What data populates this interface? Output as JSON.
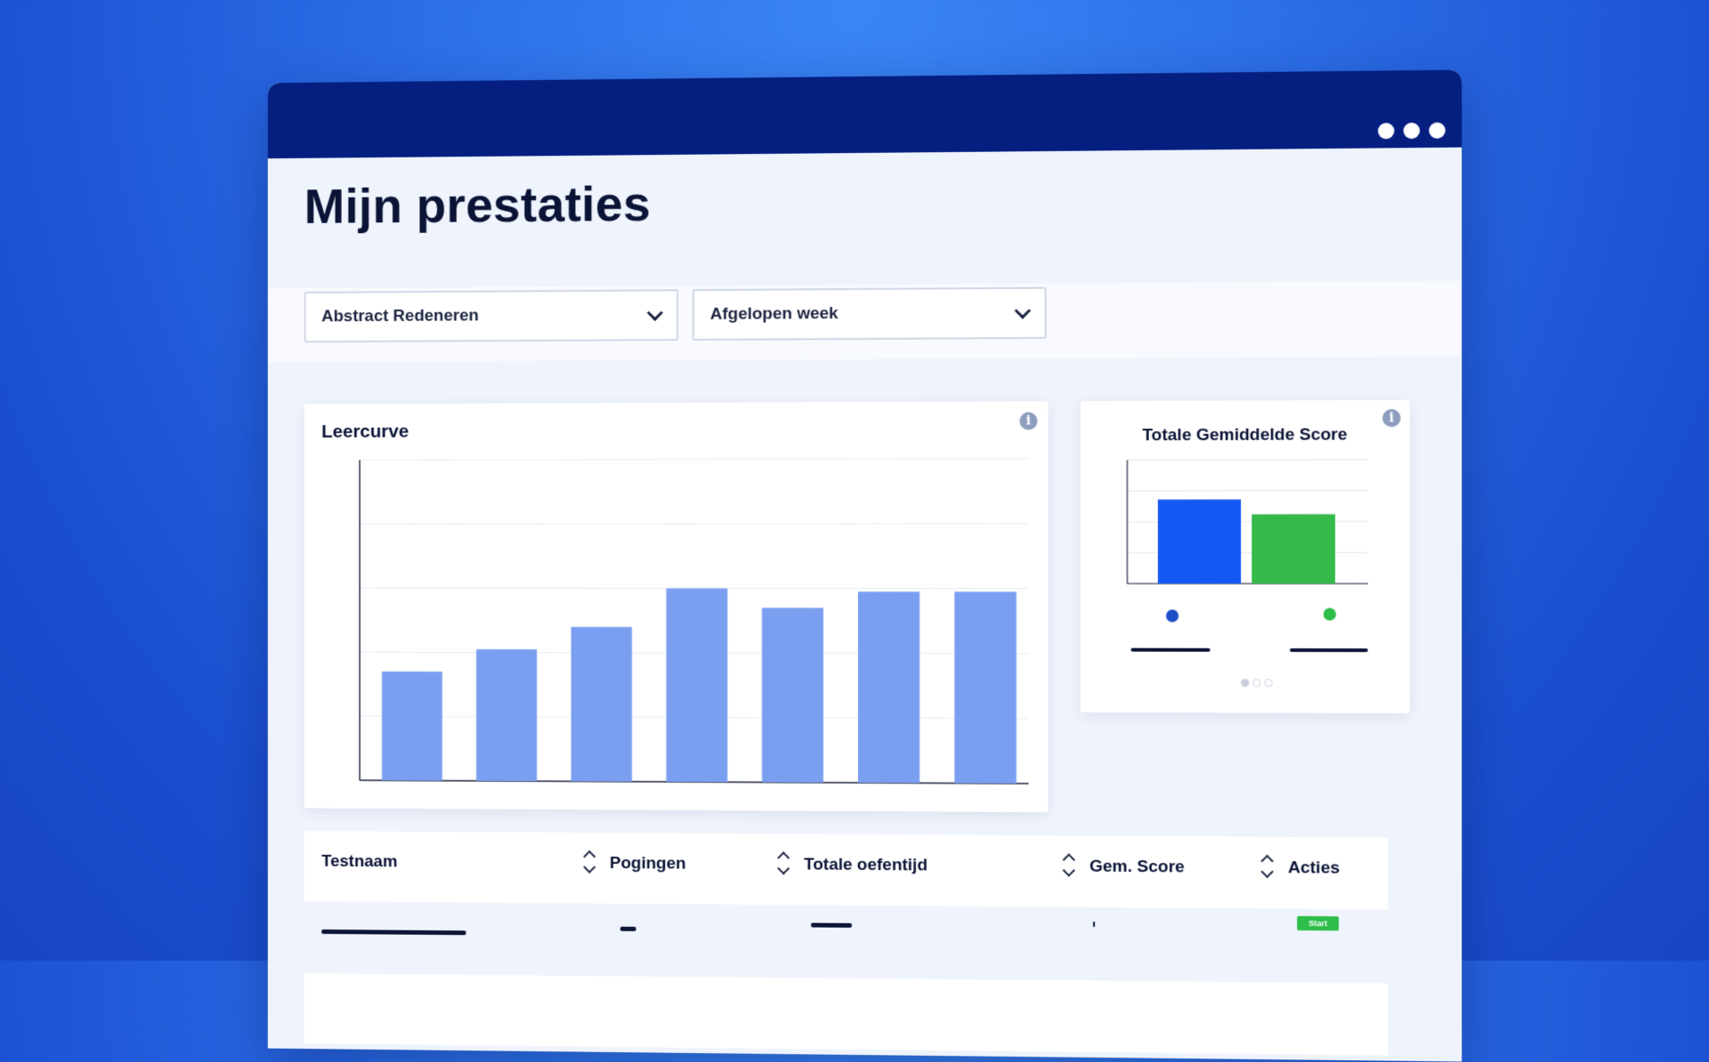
{
  "window": {
    "control_dots": 3
  },
  "page": {
    "title": "Mijn prestaties"
  },
  "filters": {
    "test_type": {
      "selected": "Abstract Redeneren"
    },
    "period": {
      "selected": "Afgelopen week"
    }
  },
  "learning_curve": {
    "title": "Leercurve",
    "info_icon": "info-icon"
  },
  "average_score": {
    "title": "Totale Gemiddelde Score",
    "info_icon": "info-icon",
    "legend_colors": [
      "#1f4fc8",
      "#2ebd4a"
    ],
    "pagination": {
      "pages": 3,
      "active": 1
    }
  },
  "chart_data": [
    {
      "type": "bar",
      "categories": [
        "",
        "",
        "",
        "",
        "",
        "",
        ""
      ],
      "values": [
        34,
        41,
        48,
        60,
        54,
        59,
        59
      ],
      "ylim": [
        0,
        100
      ],
      "grid": true,
      "color": "#7b9ff0"
    },
    {
      "type": "bar",
      "categories": [
        "",
        ""
      ],
      "values": [
        68,
        56
      ],
      "ylim": [
        0,
        100
      ],
      "grid": true,
      "colors": [
        "#1559f5",
        "#35b949"
      ]
    }
  ],
  "table": {
    "columns": [
      {
        "label": "Testnaam",
        "sortable": true
      },
      {
        "label": "Pogingen",
        "sortable": true
      },
      {
        "label": "Totale oefentijd",
        "sortable": true
      },
      {
        "label": "Gem. Score",
        "sortable": true
      },
      {
        "label": "Acties",
        "sortable": false
      }
    ],
    "row_action": "Start"
  }
}
